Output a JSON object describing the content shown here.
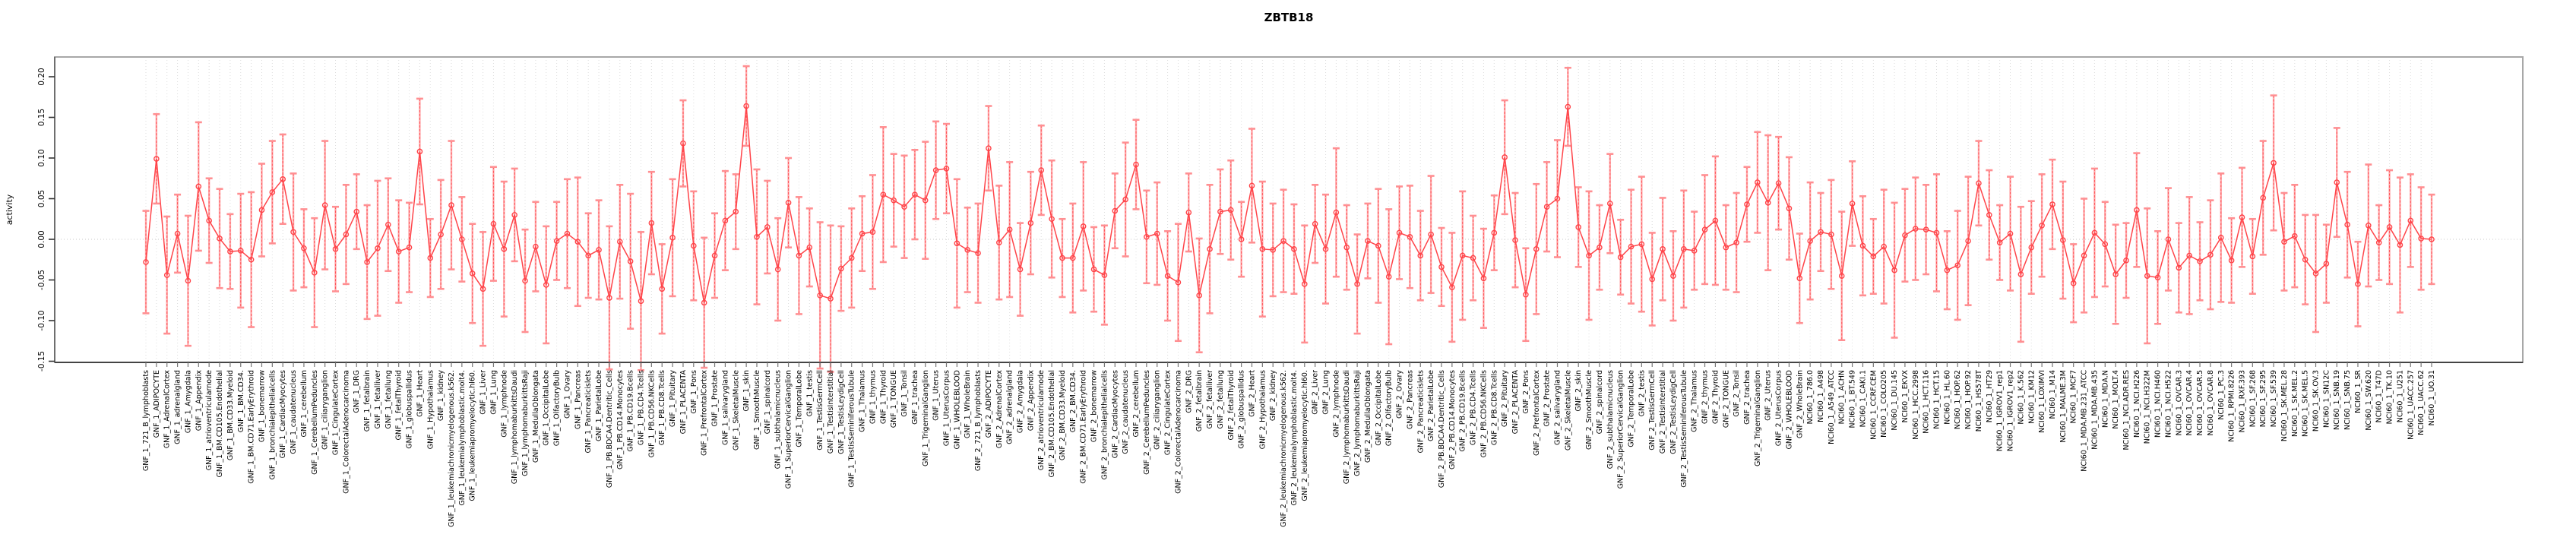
{
  "title": "ZBTB18",
  "chart_data": {
    "type": "line",
    "title": "ZBTB18",
    "xlabel": "",
    "ylabel": "activity",
    "ylim": [
      -0.151,
      0.224
    ],
    "yticks": [
      "-0.15",
      "-0.10",
      "-0.05",
      "0.00",
      "0.05",
      "0.10",
      "0.15",
      "0.20"
    ],
    "ytick_values": [
      -0.15,
      -0.1,
      -0.05,
      0.0,
      0.05,
      0.1,
      0.15,
      0.2
    ],
    "grid": "vertical dotted gridline per category; dotted horizontal line at 0",
    "legend_position": "none",
    "marker": "open-circle connected by line with error bars",
    "point_color": "#ff4449",
    "errorbar_color": "#ffa3a5",
    "errorbar_cap_color": "#ff8f92",
    "gridline_color": "#dedede",
    "zeroline_color": "#c9c9c9",
    "box_color": "#a8a8a8",
    "axis_color": "#222222",
    "categories": [
      "GNF_1_721_B_lymphoblasts",
      "GNF_1_ADIPOCYTE",
      "GNF_1_AdrenalCortex",
      "GNF_1_adrenalgland",
      "GNF_1_Amygdala",
      "GNF_1_Appendix",
      "GNF_1_atrioventricularnode",
      "GNF_1_BM.CD105.Endothelial",
      "GNF_1_BM.CD33.Myeloid",
      "GNF_1_BM.CD34.",
      "GNF_1_BM.CD71.EarlyErythroid",
      "GNF_1_bonemarrow",
      "GNF_1_bronchialepithelialcells",
      "GNF_1_CardiacMyocytes",
      "GNF_1_caudatenucleus",
      "GNF_1_cerebellum",
      "GNF_1_CerebellumPeduncles",
      "GNF_1_ciliaryganglion",
      "GNF_1_CingulateCortex",
      "GNF_1_ColorectalAdenocarcinoma",
      "GNF_1_DRG",
      "GNF_1_fetalbrain",
      "GNF_1_fetalliver",
      "GNF_1_fetallung",
      "GNF_1_fetalThyroid",
      "GNF_1_globuspallidus",
      "GNF_1_Heart",
      "GNF_1_Hypothalamus",
      "GNF_1_kidney",
      "GNF_1_leukemiachronicmyelogenous.k562.",
      "GNF_1_leukemialymphoblastic.molt4.",
      "GNF_1_leukemiapromyelocytic.hl60.",
      "GNF_1_Liver",
      "GNF_1_Lung",
      "GNF_1_lymphnode",
      "GNF_1_lymphomaburkittsDaudi",
      "GNF_1_lymphomaburkittsRaji",
      "GNF_1_MedullaOblongata",
      "GNF_1_OccipitalLobe",
      "GNF_1_OlfactoryBulb",
      "GNF_1_Ovary",
      "GNF_1_Pancreas",
      "GNF_1_Pancreaticislets",
      "GNF_1_ParietalLobe",
      "GNF_1_PB.BDCA4.Dentritic_Cells",
      "GNF_1_PB.CD14.Monocytes",
      "GNF_1_PB.CD19.Bcells",
      "GNF_1_PB.CD4.Tcells",
      "GNF_1_PB.CD56.NKCells",
      "GNF_1_PB.CD8.Tcells",
      "GNF_1_Pituitary",
      "GNF_1_PLACENTA",
      "GNF_1_Pons",
      "GNF_1_PrefrontalCortex",
      "GNF_1_Prostate",
      "GNF_1_salivarygland",
      "GNF_1_SkeletalMuscle",
      "GNF_1_skin",
      "GNF_1_SmoothMuscle",
      "GNF_1_spinalcord",
      "GNF_1_subthalamicnucleus",
      "GNF_1_SuperiorCervicalGanglion",
      "GNF_1_TemporalLobe",
      "GNF_1_testis",
      "GNF_1_TestisGermCell",
      "GNF_1_TestisInterstitial",
      "GNF_1_TestisLeydigCell",
      "GNF_1_TestisSeminiferousTubule",
      "GNF_1_Thalamus",
      "GNF_1_thymus",
      "GNF_1_Thyroid",
      "GNF_1_TONGUE",
      "GNF_1_Tonsil",
      "GNF_1_trachea",
      "GNF_1_TrigeminalGanglion",
      "GNF_1_Uterus",
      "GNF_1_UterusCorpus",
      "GNF_1_WHOLEBLOOD",
      "GNF_1_WholeBrain",
      "GNF_2_721_B_lymphoblasts",
      "GNF_2_ADIPOCYTE",
      "GNF_2_AdrenalCortex",
      "GNF_2_adrenalgland",
      "GNF_2_Amygdala",
      "GNF_2_Appendix",
      "GNF_2_atrioventricularnode",
      "GNF_2_BM.CD105.Endothelial",
      "GNF_2_BM.CD33.Myeloid",
      "GNF_2_BM.CD34.",
      "GNF_2_BM.CD71.EarlyErythroid",
      "GNF_2_bonemarrow",
      "GNF_2_bronchialepithelialcells",
      "GNF_2_CardiacMyocytes",
      "GNF_2_caudatenucleus",
      "GNF_2_cerebellum",
      "GNF_2_CerebellumPeduncles",
      "GNF_2_ciliaryganglion",
      "GNF_2_CingulateCortex",
      "GNF_2_ColorectalAdenocarcinoma",
      "GNF_2_DRG",
      "GNF_2_fetalbrain",
      "GNF_2_fetalliver",
      "GNF_2_fetallung",
      "GNF_2_fetalThyroid",
      "GNF_2_globuspallidus",
      "GNF_2_Heart",
      "GNF_2_Hypothalamus",
      "GNF_2_kidney",
      "GNF_2_leukemiachronicmyelogenous.k562.",
      "GNF_2_leukemialymphoblastic.molt4.",
      "GNF_2_leukemiapromyelocytic.hl60.",
      "GNF_2_Liver",
      "GNF_2_Lung",
      "GNF_2_lymphnode",
      "GNF_2_lymphomaburkittsDaudi",
      "GNF_2_lymphomaburkittsRaji",
      "GNF_2_MedullaOblongata",
      "GNF_2_OccipitalLobe",
      "GNF_2_OlfactoryBulb",
      "GNF_2_Ovary",
      "GNF_2_Pancreas",
      "GNF_2_Pancreaticislets",
      "GNF_2_ParietalLobe",
      "GNF_2_PB.BDCA4.Dentritic_Cells",
      "GNF_2_PB.CD14.Monocytes",
      "GNF_2_PB.CD19.Bcells",
      "GNF_2_PB.CD4.Tcells",
      "GNF_2_PB.CD56.NKCells",
      "GNF_2_PB.CD8.Tcells",
      "GNF_2_Pituitary",
      "GNF_2_PLACENTA",
      "GNF_2_Pons",
      "GNF_2_PrefrontalCortex",
      "GNF_2_Prostate",
      "GNF_2_salivarygland",
      "GNF_2_SkeletalMuscle",
      "GNF_2_skin",
      "GNF_2_SmoothMuscle",
      "GNF_2_spinalcord",
      "GNF_2_subthalamicnucleus",
      "GNF_2_SuperiorCervicalGanglion",
      "GNF_2_TemporalLobe",
      "GNF_2_testis",
      "GNF_2_TestisGermCell",
      "GNF_2_TestisInterstitial",
      "GNF_2_TestisLeydigCell",
      "GNF_2_TestisSeminiferousTubule",
      "GNF_2_Thalamus",
      "GNF_2_thymus",
      "GNF_2_Thyroid",
      "GNF_2_TONGUE",
      "GNF_2_Tonsil",
      "GNF_2_trachea",
      "GNF_2_TrigeminalGanglion",
      "GNF_2_Uterus",
      "GNF_2_UterusCorpus",
      "GNF_2_WHOLEBLOOD",
      "GNF_2_WholeBrain",
      "NCI60_1_786.0",
      "NCI60_1_A498",
      "NCI60_1_A549_ATCC",
      "NCI60_1_ACHN",
      "NCI60_1_BT.549",
      "NCI60_1_CAKI.1",
      "NCI60_1_CCRF.CEM",
      "NCI60_1_COLO205",
      "NCI60_1_DU.145",
      "NCI60_1_EKVX",
      "NCI60_1_HCC.2998",
      "NCI60_1_HCT.116",
      "NCI60_1_HCT.15",
      "NCI60_1_HL.60",
      "NCI60_1_HOP.62",
      "NCI60_1_HOP.92",
      "NCI60_1_HS578T",
      "NCI60_1_HT29",
      "NCI60_1_IGROV1_rep1",
      "NCI60_1_IGROV1_rep2",
      "NCI60_1_K.562",
      "NCI60_1_KM12",
      "NCI60_1_LOXIMVI",
      "NCI60_1_M14",
      "NCI60_1_MALME.3M",
      "NCI60_1_MCF7",
      "NCI60_1_MDA.MB.231_ATCC",
      "NCI60_1_MDA.MB.435",
      "NCI60_1_MDA.N",
      "NCI60_1_MOLT.4",
      "NCI60_1_NCI.ADR.RES",
      "NCI60_1_NCI.H226",
      "NCI60_1_NCI.H322M",
      "NCI60_1_NCI.H460",
      "NCI60_1_NCI.H522",
      "NCI60_1_OVCAR.3",
      "NCI60_1_OVCAR.4",
      "NCI60_1_OVCAR.5",
      "NCI60_1_OVCAR.8",
      "NCI60_1_PC.3",
      "NCI60_1_RPMI.8226",
      "NCI60_1_RXF.393",
      "NCI60_1_SF.268",
      "NCI60_1_SF.295",
      "NCI60_1_SF.539",
      "NCI60_1_SK.MEL.28",
      "NCI60_1_SK.MEL.2",
      "NCI60_1_SK.MEL.5",
      "NCI60_1_SK.OV.3",
      "NCI60_1_SN12C",
      "NCI60_1_SNB.19",
      "NCI60_1_SNB.75",
      "NCI60_1_SR",
      "NCI60_1_SW.620",
      "NCI60_1_T47D",
      "NCI60_1_TK.10",
      "NCI60_1_U251",
      "NCI60_1_UACC.257",
      "NCI60_1_UACC.62",
      "NCI60_1_UO.31"
    ],
    "series": [
      {
        "name": "activity",
        "values": [
          -0.028,
          0.099,
          -0.044,
          0.007,
          -0.051,
          0.065,
          0.023,
          0.001,
          -0.015,
          -0.014,
          -0.025,
          0.036,
          0.058,
          0.074,
          0.009,
          -0.011,
          -0.041,
          0.042,
          -0.012,
          0.006,
          0.034,
          -0.028,
          -0.011,
          0.018,
          -0.015,
          -0.01,
          0.108,
          -0.023,
          0.006,
          0.042,
          0.0,
          -0.042,
          -0.061,
          0.019,
          -0.012,
          0.03,
          -0.051,
          -0.009,
          -0.056,
          -0.002,
          0.007,
          -0.003,
          -0.02,
          -0.013,
          -0.072,
          -0.003,
          -0.027,
          -0.076,
          0.02,
          -0.061,
          0.002,
          0.118,
          -0.008,
          -0.078,
          -0.02,
          0.023,
          0.034,
          0.164,
          0.003,
          0.015,
          -0.037,
          0.045,
          -0.02,
          -0.01,
          -0.069,
          -0.073,
          -0.036,
          -0.023,
          0.007,
          0.009,
          0.055,
          0.048,
          0.04,
          0.055,
          0.048,
          0.085,
          0.087,
          -0.005,
          -0.013,
          -0.017,
          0.112,
          -0.004,
          0.012,
          -0.037,
          0.02,
          0.085,
          0.025,
          -0.023,
          -0.023,
          0.016,
          -0.037,
          -0.044,
          0.035,
          0.049,
          0.092,
          0.003,
          0.007,
          -0.045,
          -0.053,
          0.033,
          -0.069,
          -0.012,
          0.034,
          0.036,
          0.0,
          0.066,
          -0.012,
          -0.013,
          -0.002,
          -0.012,
          -0.055,
          0.019,
          -0.012,
          0.033,
          -0.01,
          -0.055,
          -0.002,
          -0.008,
          -0.046,
          0.008,
          0.003,
          -0.02,
          0.006,
          -0.034,
          -0.059,
          -0.02,
          -0.023,
          -0.048,
          0.008,
          0.101,
          -0.001,
          -0.068,
          -0.012,
          0.04,
          0.05,
          0.163,
          0.015,
          -0.02,
          -0.01,
          0.044,
          -0.022,
          -0.009,
          -0.006,
          -0.049,
          -0.012,
          -0.045,
          -0.012,
          -0.014,
          0.012,
          0.023,
          -0.01,
          -0.004,
          0.043,
          0.07,
          0.045,
          0.069,
          0.038,
          -0.048,
          -0.002,
          0.009,
          0.006,
          -0.045,
          0.044,
          -0.008,
          -0.021,
          -0.009,
          -0.038,
          0.005,
          0.013,
          0.012,
          0.008,
          -0.038,
          -0.032,
          -0.002,
          0.069,
          0.03,
          -0.004,
          0.007,
          -0.043,
          -0.01,
          0.017,
          0.043,
          -0.001,
          -0.054,
          -0.02,
          0.008,
          -0.006,
          -0.043,
          -0.026,
          0.036,
          -0.045,
          -0.047,
          0.0,
          -0.035,
          -0.02,
          -0.027,
          -0.019,
          0.002,
          -0.026,
          0.027,
          -0.021,
          0.051,
          0.094,
          -0.003,
          0.004,
          -0.025,
          -0.042,
          -0.03,
          0.07,
          0.018,
          -0.055,
          0.017,
          -0.004,
          0.015,
          -0.007,
          0.023,
          0.001,
          0.0
        ],
        "errors": [
          0.063,
          0.055,
          0.072,
          0.048,
          0.08,
          0.079,
          0.052,
          0.061,
          0.046,
          0.07,
          0.083,
          0.057,
          0.063,
          0.055,
          0.072,
          0.048,
          0.067,
          0.079,
          0.052,
          0.061,
          0.046,
          0.07,
          0.083,
          0.057,
          0.063,
          0.055,
          0.065,
          0.048,
          0.067,
          0.079,
          0.052,
          0.061,
          0.07,
          0.07,
          0.083,
          0.057,
          0.063,
          0.055,
          0.072,
          0.048,
          0.067,
          0.079,
          0.052,
          0.061,
          0.088,
          0.07,
          0.083,
          0.085,
          0.063,
          0.055,
          0.072,
          0.053,
          0.067,
          0.08,
          0.052,
          0.061,
          0.046,
          0.049,
          0.083,
          0.057,
          0.063,
          0.055,
          0.072,
          0.048,
          0.09,
          0.09,
          0.052,
          0.061,
          0.046,
          0.07,
          0.083,
          0.057,
          0.063,
          0.055,
          0.072,
          0.06,
          0.055,
          0.079,
          0.052,
          0.061,
          0.052,
          0.07,
          0.083,
          0.057,
          0.063,
          0.055,
          0.072,
          0.048,
          0.067,
          0.079,
          0.052,
          0.061,
          0.046,
          0.07,
          0.055,
          0.057,
          0.063,
          0.055,
          0.072,
          0.048,
          0.07,
          0.079,
          0.052,
          0.061,
          0.046,
          0.07,
          0.083,
          0.057,
          0.063,
          0.055,
          0.072,
          0.048,
          0.067,
          0.079,
          0.052,
          0.061,
          0.046,
          0.07,
          0.083,
          0.057,
          0.063,
          0.055,
          0.072,
          0.048,
          0.067,
          0.079,
          0.052,
          0.061,
          0.046,
          0.07,
          0.058,
          0.057,
          0.08,
          0.055,
          0.072,
          0.048,
          0.049,
          0.079,
          0.052,
          0.061,
          0.046,
          0.07,
          0.083,
          0.057,
          0.063,
          0.055,
          0.072,
          0.048,
          0.067,
          0.079,
          0.052,
          0.061,
          0.046,
          0.062,
          0.083,
          0.057,
          0.063,
          0.055,
          0.072,
          0.048,
          0.067,
          0.079,
          0.052,
          0.061,
          0.046,
          0.07,
          0.083,
          0.057,
          0.063,
          0.055,
          0.072,
          0.048,
          0.067,
          0.079,
          0.052,
          0.055,
          0.046,
          0.07,
          0.083,
          0.057,
          0.063,
          0.055,
          0.072,
          0.048,
          0.07,
          0.079,
          0.052,
          0.061,
          0.046,
          0.07,
          0.083,
          0.057,
          0.063,
          0.055,
          0.072,
          0.048,
          0.067,
          0.079,
          0.052,
          0.061,
          0.046,
          0.07,
          0.083,
          0.06,
          0.063,
          0.055,
          0.072,
          0.048,
          0.067,
          0.065,
          0.052,
          0.075,
          0.046,
          0.07,
          0.083,
          0.057,
          0.063,
          0.055
        ]
      }
    ]
  }
}
